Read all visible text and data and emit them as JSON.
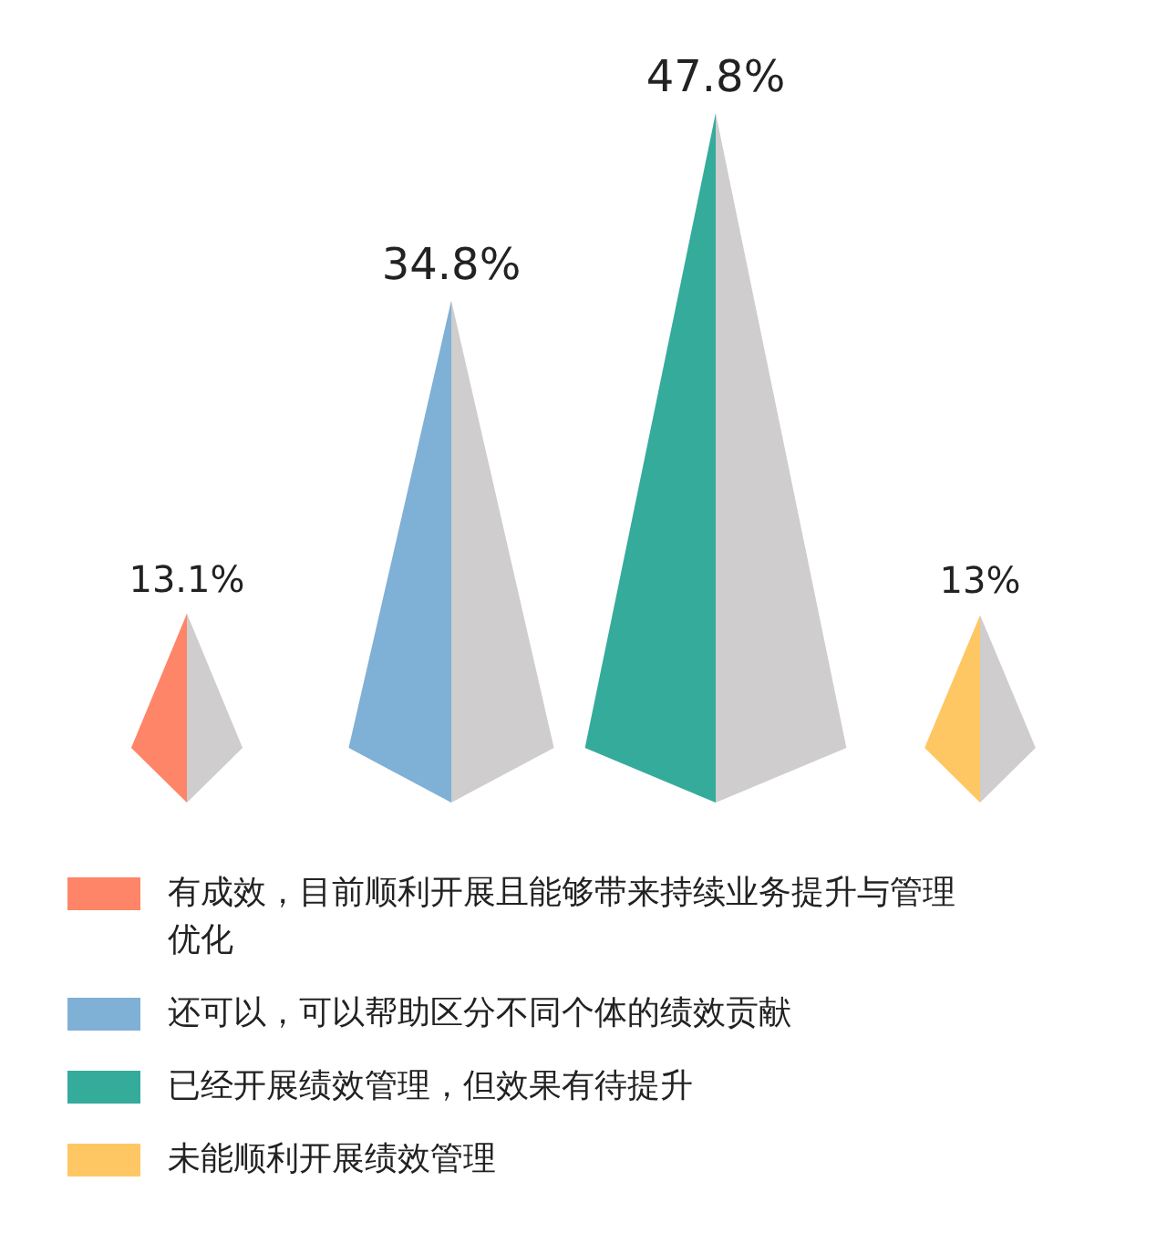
{
  "chart_data": {
    "type": "bar",
    "categories": [
      null
    ],
    "series": [
      {
        "name": "有成效，目前顺利开展且能够带来持续业务提升与管理优化",
        "color": "#fe8567",
        "values": [
          13.1
        ],
        "value_labels": [
          "13.1%"
        ]
      },
      {
        "name": "还可以，可以帮助区分不同个体的绩效贡献",
        "color": "#7fb0d6",
        "values": [
          34.8
        ],
        "value_labels": [
          "34.8%"
        ]
      },
      {
        "name": "已经开展绩效管理，但效果有待提升",
        "color": "#35ab9b",
        "values": [
          47.8
        ],
        "value_labels": [
          "47.8%"
        ]
      },
      {
        "name": "未能顺利开展绩效管理",
        "color": "#fec764",
        "values": [
          13
        ],
        "value_labels": [
          "13%"
        ]
      }
    ],
    "legend": "bottom",
    "tick_labels": false
  }
}
